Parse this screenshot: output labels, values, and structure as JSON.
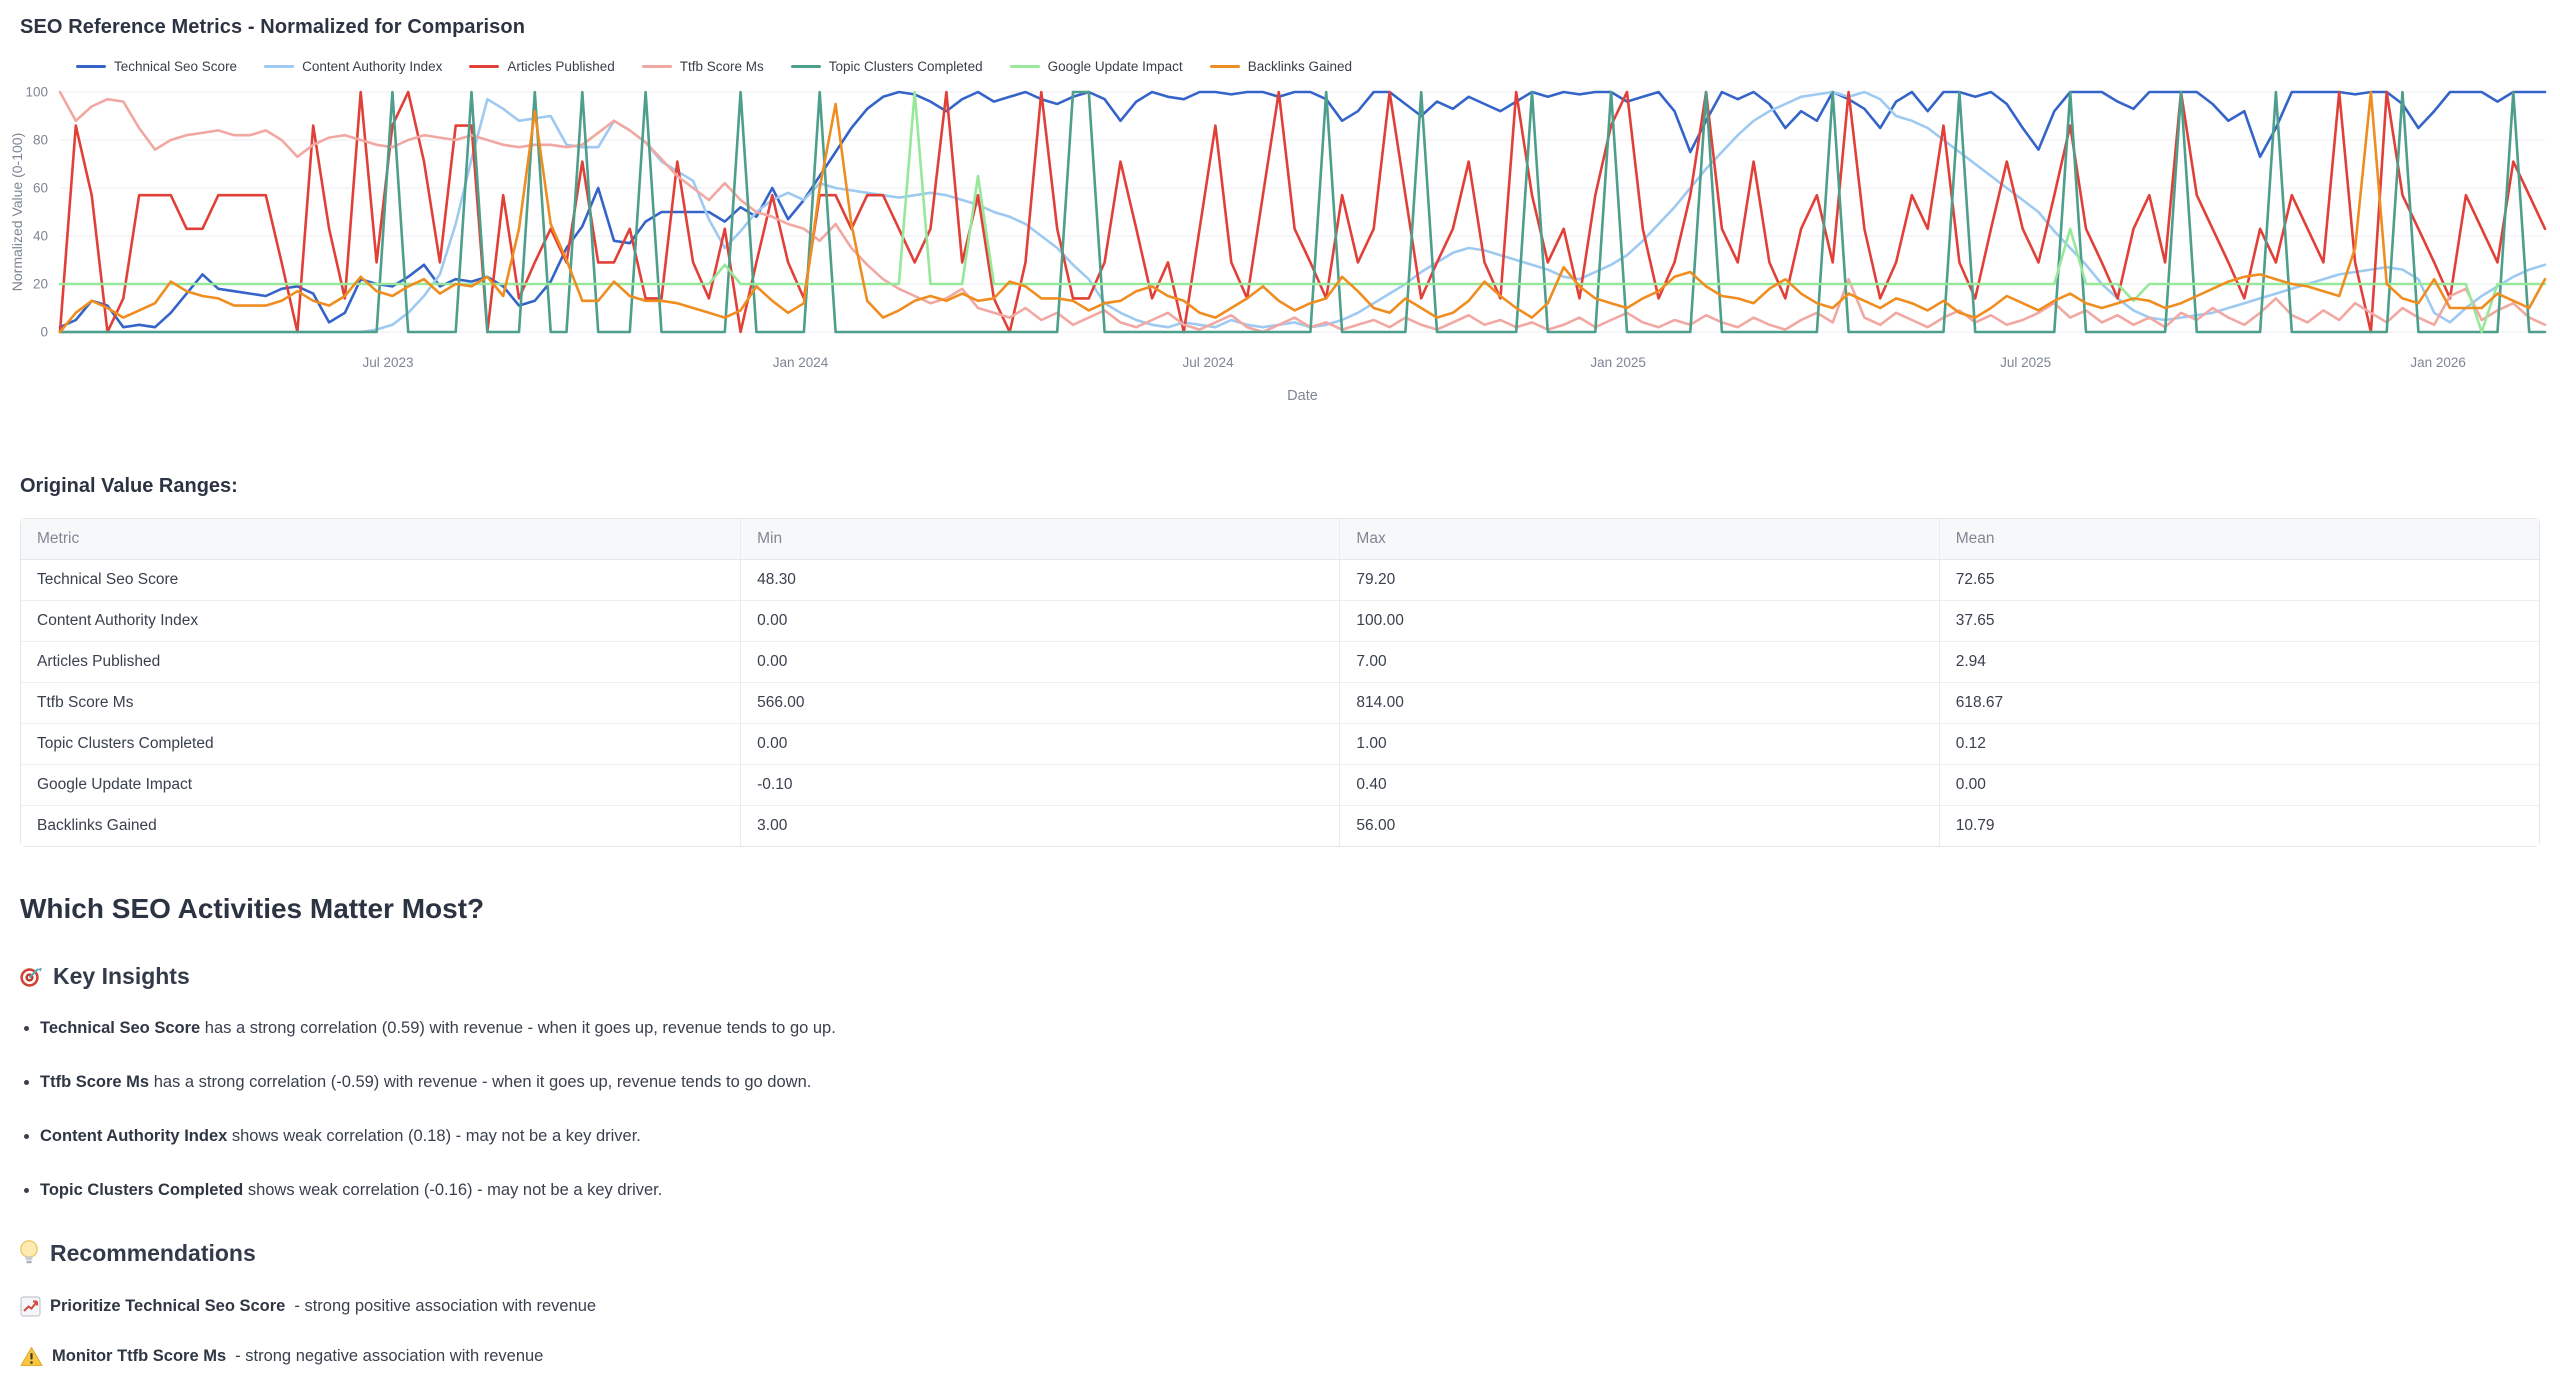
{
  "chart": {
    "title": "SEO Reference Metrics - Normalized for Comparison"
  },
  "chart_data": {
    "type": "line",
    "title": "SEO Reference Metrics - Normalized for Comparison",
    "xlabel": "Date",
    "ylabel": "Normalized Value (0-100)",
    "ylim": [
      0,
      100
    ],
    "yticks": [
      0,
      20,
      40,
      60,
      80,
      100
    ],
    "xticks": [
      {
        "label": "Jul 2023",
        "pos": 0.132
      },
      {
        "label": "Jan 2024",
        "pos": 0.298
      },
      {
        "label": "Jul 2024",
        "pos": 0.462
      },
      {
        "label": "Jan 2025",
        "pos": 0.627
      },
      {
        "label": "Jul 2025",
        "pos": 0.791
      },
      {
        "label": "Jan 2026",
        "pos": 0.957
      }
    ],
    "x_range": [
      "Feb 2023",
      "Feb 2026"
    ],
    "x_frequency": "weekly",
    "grid": true,
    "legend_position": "top",
    "series": [
      {
        "name": "Technical Seo Score",
        "color": "#3564c9",
        "values": [
          2,
          5,
          13,
          11,
          2,
          3,
          2,
          8,
          16,
          24,
          18,
          17,
          16,
          15,
          18,
          19,
          16,
          4,
          8,
          22,
          20,
          19,
          23,
          28,
          19,
          22,
          21,
          23,
          19,
          11,
          13,
          21,
          35,
          44,
          60,
          38,
          37,
          46,
          50,
          50,
          50,
          50,
          46,
          52,
          48,
          60,
          47,
          55,
          65,
          75,
          85,
          93,
          98,
          100,
          99,
          96,
          92,
          97,
          100,
          96,
          98,
          100,
          97,
          95,
          98,
          100,
          97,
          88,
          96,
          100,
          98,
          97,
          100,
          100,
          99,
          100,
          100,
          98,
          100,
          100,
          97,
          88,
          92,
          100,
          100,
          95,
          90,
          96,
          93,
          98,
          95,
          92,
          96,
          100,
          98,
          100,
          99,
          100,
          100,
          96,
          98,
          100,
          92,
          75,
          88,
          100,
          97,
          100,
          95,
          85,
          92,
          88,
          100,
          97,
          93,
          85,
          96,
          100,
          92,
          100,
          100,
          98,
          100,
          95,
          85,
          76,
          92,
          100,
          100,
          100,
          96,
          93,
          100,
          100,
          100,
          100,
          95,
          88,
          92,
          73,
          85,
          100,
          100,
          100,
          100,
          99,
          100,
          100,
          95,
          85,
          92,
          100,
          100,
          100,
          96,
          100,
          100,
          100
        ]
      },
      {
        "name": "Content Authority Index",
        "color": "#9ec9f1",
        "values": [
          0,
          0,
          0,
          0,
          0,
          0,
          0,
          0,
          0,
          0,
          0,
          0,
          0,
          0,
          0,
          0,
          0,
          0,
          0,
          0,
          1,
          3,
          8,
          15,
          24,
          45,
          72,
          97,
          93,
          88,
          89,
          90,
          78,
          77,
          77,
          88,
          84,
          79,
          71,
          67,
          63,
          47,
          35,
          42,
          50,
          55,
          58,
          55,
          62,
          60,
          59,
          58,
          57,
          56,
          57,
          58,
          57,
          55,
          53,
          50,
          48,
          45,
          40,
          35,
          28,
          22,
          12,
          8,
          5,
          3,
          2,
          4,
          3,
          2,
          5,
          3,
          2,
          3,
          4,
          2,
          3,
          5,
          8,
          12,
          16,
          20,
          25,
          29,
          33,
          35,
          34,
          32,
          30,
          28,
          26,
          23,
          22,
          25,
          28,
          32,
          38,
          45,
          52,
          60,
          68,
          75,
          82,
          88,
          92,
          95,
          98,
          99,
          100,
          98,
          100,
          97,
          90,
          88,
          85,
          80,
          75,
          70,
          65,
          60,
          55,
          50,
          42,
          35,
          28,
          20,
          14,
          9,
          6,
          5,
          6,
          7,
          8,
          10,
          12,
          14,
          16,
          18,
          20,
          22,
          24,
          25,
          26,
          27,
          26,
          22,
          8,
          4,
          10,
          15,
          19,
          23,
          26,
          28
        ]
      },
      {
        "name": "Articles Published",
        "color": "#e14038",
        "values": [
          0,
          86,
          57,
          0,
          14,
          57,
          57,
          57,
          43,
          43,
          57,
          57,
          57,
          57,
          29,
          0,
          86,
          43,
          14,
          100,
          29,
          86,
          100,
          71,
          29,
          86,
          86,
          0,
          57,
          14,
          29,
          43,
          29,
          71,
          29,
          29,
          43,
          14,
          14,
          71,
          29,
          14,
          43,
          0,
          29,
          57,
          29,
          14,
          57,
          57,
          43,
          57,
          57,
          43,
          29,
          43,
          100,
          29,
          57,
          14,
          0,
          29,
          100,
          43,
          14,
          14,
          29,
          71,
          43,
          14,
          29,
          0,
          43,
          86,
          29,
          14,
          57,
          100,
          43,
          29,
          14,
          57,
          29,
          43,
          100,
          57,
          14,
          29,
          43,
          71,
          29,
          14,
          100,
          57,
          29,
          43,
          14,
          57,
          86,
          100,
          43,
          14,
          29,
          57,
          100,
          43,
          29,
          71,
          29,
          14,
          43,
          57,
          29,
          100,
          43,
          14,
          29,
          57,
          43,
          86,
          29,
          14,
          43,
          71,
          43,
          29,
          57,
          86,
          43,
          29,
          14,
          43,
          57,
          29,
          100,
          57,
          43,
          29,
          14,
          43,
          29,
          57,
          43,
          29,
          100,
          29,
          0,
          100,
          57,
          43,
          29,
          14,
          57,
          43,
          29,
          71,
          57,
          43
        ]
      },
      {
        "name": "Ttfb Score Ms",
        "color": "#f2a8a2",
        "values": [
          100,
          88,
          94,
          97,
          96,
          85,
          76,
          80,
          82,
          83,
          84,
          82,
          82,
          84,
          80,
          73,
          78,
          81,
          82,
          80,
          78,
          77,
          80,
          82,
          81,
          80,
          82,
          80,
          78,
          77,
          78,
          78,
          77,
          78,
          83,
          88,
          84,
          79,
          72,
          65,
          60,
          55,
          62,
          55,
          50,
          48,
          45,
          43,
          38,
          45,
          35,
          28,
          22,
          18,
          15,
          12,
          14,
          18,
          10,
          8,
          6,
          10,
          5,
          8,
          3,
          6,
          9,
          4,
          2,
          5,
          8,
          3,
          1,
          4,
          7,
          2,
          0,
          3,
          6,
          2,
          4,
          1,
          3,
          5,
          2,
          6,
          3,
          1,
          4,
          7,
          3,
          5,
          2,
          4,
          1,
          3,
          6,
          2,
          5,
          8,
          4,
          2,
          5,
          3,
          7,
          4,
          2,
          6,
          3,
          1,
          5,
          8,
          4,
          22,
          6,
          3,
          8,
          5,
          2,
          6,
          9,
          4,
          7,
          3,
          5,
          8,
          12,
          6,
          9,
          4,
          7,
          3,
          6,
          2,
          8,
          5,
          10,
          6,
          3,
          8,
          14,
          7,
          4,
          9,
          5,
          12,
          8,
          4,
          10,
          6,
          3,
          15,
          18,
          5,
          9,
          12,
          6,
          3
        ]
      },
      {
        "name": "Topic Clusters Completed",
        "color": "#4d9e8b",
        "values": [
          0,
          0,
          0,
          0,
          0,
          0,
          0,
          0,
          0,
          0,
          0,
          0,
          0,
          0,
          0,
          0,
          0,
          0,
          0,
          0,
          0,
          100,
          0,
          0,
          0,
          0,
          100,
          0,
          0,
          0,
          100,
          0,
          0,
          100,
          0,
          0,
          0,
          100,
          0,
          0,
          0,
          0,
          0,
          100,
          0,
          0,
          0,
          0,
          100,
          0,
          0,
          0,
          0,
          0,
          0,
          0,
          0,
          0,
          0,
          0,
          0,
          0,
          0,
          0,
          100,
          100,
          0,
          0,
          0,
          0,
          0,
          0,
          0,
          0,
          0,
          0,
          0,
          0,
          0,
          0,
          100,
          0,
          0,
          0,
          0,
          0,
          100,
          0,
          0,
          0,
          0,
          0,
          0,
          100,
          0,
          0,
          0,
          0,
          100,
          0,
          0,
          0,
          0,
          0,
          100,
          0,
          0,
          0,
          0,
          0,
          0,
          0,
          100,
          0,
          0,
          0,
          0,
          0,
          0,
          0,
          100,
          0,
          0,
          0,
          0,
          0,
          0,
          100,
          0,
          0,
          0,
          0,
          0,
          0,
          100,
          0,
          0,
          0,
          0,
          0,
          100,
          0,
          0,
          0,
          0,
          0,
          0,
          0,
          100,
          0,
          0,
          0,
          0,
          0,
          0,
          100,
          0,
          0
        ]
      },
      {
        "name": "Google Update Impact",
        "color": "#97e89b",
        "values": [
          20,
          20,
          20,
          20,
          20,
          20,
          20,
          20,
          20,
          20,
          20,
          20,
          20,
          20,
          20,
          20,
          20,
          20,
          20,
          20,
          20,
          20,
          20,
          20,
          20,
          20,
          20,
          20,
          20,
          20,
          20,
          20,
          20,
          20,
          20,
          20,
          20,
          20,
          20,
          20,
          20,
          20,
          28,
          20,
          20,
          20,
          20,
          20,
          20,
          20,
          20,
          20,
          20,
          20,
          100,
          20,
          20,
          20,
          65,
          20,
          20,
          20,
          20,
          20,
          20,
          20,
          20,
          20,
          20,
          20,
          20,
          20,
          20,
          20,
          20,
          20,
          20,
          20,
          20,
          20,
          20,
          20,
          20,
          20,
          20,
          20,
          20,
          20,
          20,
          20,
          20,
          20,
          20,
          20,
          20,
          20,
          20,
          20,
          20,
          20,
          20,
          20,
          20,
          20,
          20,
          20,
          20,
          20,
          20,
          20,
          20,
          20,
          20,
          20,
          20,
          20,
          20,
          20,
          20,
          20,
          20,
          20,
          20,
          20,
          20,
          20,
          20,
          43,
          20,
          20,
          20,
          13,
          20,
          20,
          20,
          20,
          20,
          20,
          20,
          20,
          20,
          20,
          20,
          20,
          20,
          20,
          20,
          20,
          20,
          20,
          20,
          20,
          20,
          0,
          20,
          20,
          20,
          20
        ]
      },
      {
        "name": "Backlinks Gained",
        "color": "#ef8d20",
        "values": [
          0,
          8,
          13,
          10,
          6,
          9,
          12,
          21,
          17,
          15,
          14,
          11,
          11,
          11,
          13,
          17,
          13,
          11,
          15,
          23,
          17,
          15,
          19,
          22,
          16,
          20,
          19,
          23,
          15,
          43,
          92,
          45,
          30,
          13,
          13,
          21,
          15,
          13,
          13,
          12,
          10,
          8,
          6,
          9,
          19,
          13,
          8,
          12,
          60,
          95,
          45,
          13,
          6,
          9,
          13,
          15,
          13,
          16,
          13,
          14,
          21,
          19,
          14,
          14,
          13,
          9,
          12,
          13,
          17,
          19,
          15,
          13,
          8,
          6,
          10,
          14,
          19,
          13,
          9,
          12,
          14,
          23,
          17,
          10,
          8,
          14,
          10,
          6,
          8,
          13,
          21,
          15,
          10,
          6,
          12,
          27,
          19,
          14,
          12,
          10,
          14,
          17,
          23,
          25,
          19,
          15,
          14,
          12,
          18,
          22,
          16,
          12,
          10,
          16,
          13,
          10,
          14,
          12,
          9,
          13,
          8,
          6,
          10,
          15,
          12,
          9,
          13,
          16,
          12,
          10,
          12,
          14,
          13,
          10,
          12,
          15,
          18,
          21,
          23,
          24,
          22,
          20,
          19,
          17,
          15,
          35,
          100,
          20,
          14,
          12,
          22,
          10,
          10,
          10,
          16,
          13,
          10,
          22
        ]
      }
    ]
  },
  "table": {
    "title": "Original Value Ranges:",
    "columns": [
      "Metric",
      "Min",
      "Max",
      "Mean"
    ],
    "rows": [
      [
        "Technical Seo Score",
        "48.30",
        "79.20",
        "72.65"
      ],
      [
        "Content Authority Index",
        "0.00",
        "100.00",
        "37.65"
      ],
      [
        "Articles Published",
        "0.00",
        "7.00",
        "2.94"
      ],
      [
        "Ttfb Score Ms",
        "566.00",
        "814.00",
        "618.67"
      ],
      [
        "Topic Clusters Completed",
        "0.00",
        "1.00",
        "0.12"
      ],
      [
        "Google Update Impact",
        "-0.10",
        "0.40",
        "0.00"
      ],
      [
        "Backlinks Gained",
        "3.00",
        "56.00",
        "10.79"
      ]
    ]
  },
  "analysis": {
    "heading": "Which SEO Activities Matter Most?",
    "key_insights": {
      "icon": "target",
      "title": "Key Insights",
      "bullets": [
        {
          "bold": "Technical Seo Score",
          "rest": " has a strong correlation (0.59) with revenue - when it goes up, revenue tends to go up."
        },
        {
          "bold": "Ttfb Score Ms",
          "rest": " has a strong correlation (-0.59) with revenue - when it goes up, revenue tends to go down."
        },
        {
          "bold": "Content Authority Index",
          "rest": " shows weak correlation (0.18) - may not be a key driver."
        },
        {
          "bold": "Topic Clusters Completed",
          "rest": " shows weak correlation (-0.16) - may not be a key driver."
        }
      ]
    },
    "recommendations": {
      "icon": "lightbulb",
      "title": "Recommendations",
      "items": [
        {
          "icon": "chart-increasing",
          "bold": "Prioritize Technical Seo Score",
          "rest": " - strong positive association with revenue"
        },
        {
          "icon": "warning",
          "bold": "Monitor Ttfb Score Ms",
          "rest": " - strong negative association with revenue"
        }
      ]
    }
  }
}
